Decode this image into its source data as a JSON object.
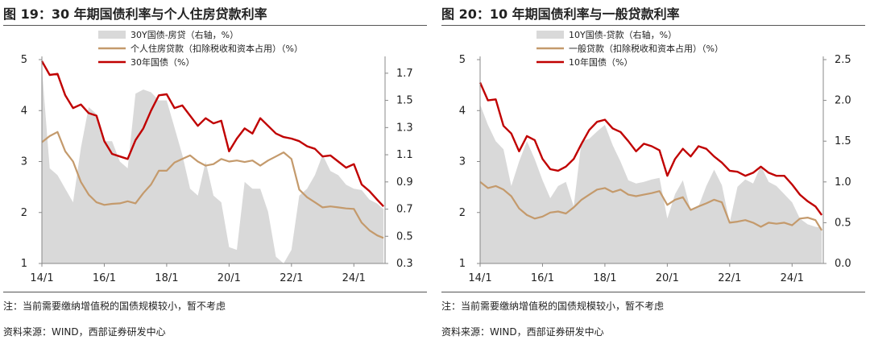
{
  "colors": {
    "area": "#d9d9d9",
    "loan": "#c49a6c",
    "bond": "#c00000",
    "axis": "#888888"
  },
  "chart_data": [
    {
      "type": "line",
      "title": "图 19：30 年期国债利率与个人住房贷款利率",
      "note": "注：当前需要缴纳增值税的国债规模较小，暂不考虑",
      "source": "资料来源：WIND，西部证券研发中心",
      "x_range": [
        2014.0,
        2025.0
      ],
      "x_ticks": [
        {
          "v": 2014.0,
          "label": "14/1"
        },
        {
          "v": 2016.0,
          "label": "16/1"
        },
        {
          "v": 2018.0,
          "label": "18/1"
        },
        {
          "v": 2020.0,
          "label": "20/1"
        },
        {
          "v": 2022.0,
          "label": "22/1"
        },
        {
          "v": 2024.0,
          "label": "24/1"
        }
      ],
      "ylim_left": [
        1,
        5
      ],
      "yticks_left": [
        "1",
        "2",
        "3",
        "4",
        "5"
      ],
      "ylim_right": [
        0.3,
        1.8
      ],
      "yticks_right": [
        "0.3",
        "0.5",
        "0.7",
        "0.9",
        "1.1",
        "1.3",
        "1.5",
        "1.7"
      ],
      "series": [
        {
          "name": "30Y国债-房贷（右轴，%）",
          "kind": "area",
          "axis": "right",
          "x": [
            2014.0,
            2014.25,
            2014.5,
            2014.75,
            2015.0,
            2015.25,
            2015.5,
            2015.75,
            2016.0,
            2016.25,
            2016.5,
            2016.75,
            2017.0,
            2017.25,
            2017.5,
            2017.75,
            2018.0,
            2018.25,
            2018.5,
            2018.75,
            2019.0,
            2019.25,
            2019.5,
            2019.75,
            2020.0,
            2020.25,
            2020.5,
            2020.75,
            2021.0,
            2021.25,
            2021.5,
            2021.75,
            2022.0,
            2022.25,
            2022.5,
            2022.75,
            2023.0,
            2023.25,
            2023.5,
            2023.75,
            2024.0,
            2024.25,
            2024.5,
            2024.75,
            2024.95
          ],
          "values": [
            1.74,
            1.0,
            0.95,
            0.85,
            0.75,
            1.15,
            1.45,
            1.4,
            1.2,
            1.2,
            1.05,
            1.0,
            1.55,
            1.58,
            1.56,
            1.5,
            1.5,
            1.3,
            1.1,
            0.85,
            0.8,
            1.05,
            0.8,
            0.75,
            0.42,
            0.4,
            0.9,
            0.85,
            0.85,
            0.68,
            0.35,
            0.3,
            0.4,
            0.8,
            0.85,
            0.95,
            1.1,
            0.98,
            0.95,
            0.88,
            0.85,
            0.84,
            0.77,
            0.74,
            0.7
          ]
        },
        {
          "name": "个人住房贷款（扣除税收和资本占用）（%）",
          "kind": "line",
          "axis": "left",
          "x": [
            2014.0,
            2014.25,
            2014.5,
            2014.75,
            2015.0,
            2015.25,
            2015.5,
            2015.75,
            2016.0,
            2016.25,
            2016.5,
            2016.75,
            2017.0,
            2017.25,
            2017.5,
            2017.75,
            2018.0,
            2018.25,
            2018.5,
            2018.75,
            2019.0,
            2019.25,
            2019.5,
            2019.75,
            2020.0,
            2020.25,
            2020.5,
            2020.75,
            2021.0,
            2021.25,
            2021.5,
            2021.75,
            2022.0,
            2022.25,
            2022.5,
            2022.75,
            2023.0,
            2023.25,
            2023.5,
            2023.75,
            2024.0,
            2024.25,
            2024.5,
            2024.75,
            2024.95
          ],
          "values": [
            3.38,
            3.5,
            3.58,
            3.2,
            3.0,
            2.6,
            2.35,
            2.2,
            2.15,
            2.17,
            2.18,
            2.22,
            2.18,
            2.38,
            2.55,
            2.82,
            2.82,
            2.98,
            3.05,
            3.12,
            3.0,
            2.92,
            2.95,
            3.05,
            3.0,
            3.02,
            2.99,
            3.02,
            2.92,
            3.02,
            3.1,
            3.18,
            3.05,
            2.45,
            2.3,
            2.2,
            2.1,
            2.12,
            2.1,
            2.08,
            2.07,
            1.8,
            1.65,
            1.55,
            1.5
          ]
        },
        {
          "name": "30年国债（%）",
          "kind": "line",
          "axis": "left",
          "x": [
            2014.0,
            2014.25,
            2014.5,
            2014.75,
            2015.0,
            2015.25,
            2015.5,
            2015.75,
            2016.0,
            2016.25,
            2016.5,
            2016.75,
            2017.0,
            2017.25,
            2017.5,
            2017.75,
            2018.0,
            2018.25,
            2018.5,
            2018.75,
            2019.0,
            2019.25,
            2019.5,
            2019.75,
            2020.0,
            2020.25,
            2020.5,
            2020.75,
            2021.0,
            2021.25,
            2021.5,
            2021.75,
            2022.0,
            2022.25,
            2022.5,
            2022.75,
            2023.0,
            2023.25,
            2023.5,
            2023.75,
            2024.0,
            2024.25,
            2024.5,
            2024.75,
            2024.95
          ],
          "values": [
            4.97,
            4.7,
            4.72,
            4.3,
            4.05,
            4.12,
            3.95,
            3.9,
            3.4,
            3.15,
            3.1,
            3.05,
            3.42,
            3.65,
            4.0,
            4.3,
            4.32,
            4.05,
            4.1,
            3.9,
            3.7,
            3.85,
            3.75,
            3.8,
            3.2,
            3.45,
            3.65,
            3.55,
            3.85,
            3.7,
            3.55,
            3.48,
            3.45,
            3.4,
            3.3,
            3.25,
            3.1,
            3.12,
            3.0,
            2.88,
            2.95,
            2.55,
            2.42,
            2.25,
            2.12
          ]
        }
      ]
    },
    {
      "type": "line",
      "title": "图 20：10 年期国债利率与一般贷款利率",
      "note": "注：当前需要缴纳增值税的国债规模较小，暂不考虑",
      "source": "资料来源：WIND，西部证券研发中心",
      "x_range": [
        2014.0,
        2025.0
      ],
      "x_ticks": [
        {
          "v": 2014.0,
          "label": "14/1"
        },
        {
          "v": 2016.0,
          "label": "16/1"
        },
        {
          "v": 2018.0,
          "label": "18/1"
        },
        {
          "v": 2020.0,
          "label": "20/1"
        },
        {
          "v": 2022.0,
          "label": "22/1"
        },
        {
          "v": 2024.0,
          "label": "24/1"
        }
      ],
      "ylim_left": [
        1,
        5
      ],
      "yticks_left": [
        "1",
        "2",
        "3",
        "4",
        "5"
      ],
      "ylim_right": [
        0.0,
        2.5
      ],
      "yticks_right": [
        "0.0",
        "0.5",
        "1.0",
        "1.5",
        "2.0",
        "2.5"
      ],
      "series": [
        {
          "name": "10Y国债-贷款（右轴，%）",
          "kind": "area",
          "axis": "right",
          "x": [
            2014.0,
            2014.25,
            2014.5,
            2014.75,
            2015.0,
            2015.25,
            2015.5,
            2015.75,
            2016.0,
            2016.25,
            2016.5,
            2016.75,
            2017.0,
            2017.25,
            2017.5,
            2017.75,
            2018.0,
            2018.25,
            2018.5,
            2018.75,
            2019.0,
            2019.25,
            2019.5,
            2019.75,
            2020.0,
            2020.25,
            2020.5,
            2020.75,
            2021.0,
            2021.25,
            2021.5,
            2021.75,
            2022.0,
            2022.25,
            2022.5,
            2022.75,
            2023.0,
            2023.25,
            2023.5,
            2023.75,
            2024.0,
            2024.25,
            2024.5,
            2024.75,
            2024.95
          ],
          "values": [
            1.95,
            1.7,
            1.5,
            1.4,
            0.95,
            1.25,
            1.5,
            1.28,
            1.02,
            0.8,
            0.95,
            1.0,
            0.7,
            1.5,
            1.53,
            1.62,
            1.7,
            1.45,
            1.25,
            1.02,
            0.98,
            1.0,
            1.03,
            1.05,
            0.55,
            0.85,
            1.02,
            0.65,
            0.7,
            0.95,
            1.15,
            0.96,
            0.5,
            0.94,
            1.03,
            0.98,
            1.2,
            1.0,
            0.95,
            0.85,
            0.75,
            0.55,
            0.48,
            0.45,
            0.44
          ]
        },
        {
          "name": "一般贷款（扣除税收和资本占用）（%）",
          "kind": "line",
          "axis": "left",
          "x": [
            2014.0,
            2014.25,
            2014.5,
            2014.75,
            2015.0,
            2015.25,
            2015.5,
            2015.75,
            2016.0,
            2016.25,
            2016.5,
            2016.75,
            2017.0,
            2017.25,
            2017.5,
            2017.75,
            2018.0,
            2018.25,
            2018.5,
            2018.75,
            2019.0,
            2019.25,
            2019.5,
            2019.75,
            2020.0,
            2020.25,
            2020.5,
            2020.75,
            2021.0,
            2021.25,
            2021.5,
            2021.75,
            2022.0,
            2022.25,
            2022.5,
            2022.75,
            2023.0,
            2023.25,
            2023.5,
            2023.75,
            2024.0,
            2024.25,
            2024.5,
            2024.75,
            2024.95
          ],
          "values": [
            2.6,
            2.48,
            2.52,
            2.45,
            2.32,
            2.08,
            1.95,
            1.88,
            1.92,
            2.0,
            2.02,
            1.98,
            2.1,
            2.25,
            2.35,
            2.45,
            2.48,
            2.4,
            2.45,
            2.35,
            2.32,
            2.35,
            2.38,
            2.42,
            2.15,
            2.25,
            2.3,
            2.05,
            2.12,
            2.18,
            2.25,
            2.2,
            1.8,
            1.82,
            1.85,
            1.8,
            1.72,
            1.8,
            1.78,
            1.8,
            1.75,
            1.88,
            1.9,
            1.85,
            1.65
          ]
        },
        {
          "name": "10年国债（%）",
          "kind": "line",
          "axis": "left",
          "x": [
            2014.0,
            2014.25,
            2014.5,
            2014.75,
            2015.0,
            2015.25,
            2015.5,
            2015.75,
            2016.0,
            2016.25,
            2016.5,
            2016.75,
            2017.0,
            2017.25,
            2017.5,
            2017.75,
            2018.0,
            2018.25,
            2018.5,
            2018.75,
            2019.0,
            2019.25,
            2019.5,
            2019.75,
            2020.0,
            2020.25,
            2020.5,
            2020.75,
            2021.0,
            2021.25,
            2021.5,
            2021.75,
            2022.0,
            2022.25,
            2022.5,
            2022.75,
            2023.0,
            2023.25,
            2023.5,
            2023.75,
            2024.0,
            2024.25,
            2024.5,
            2024.75,
            2024.95
          ],
          "values": [
            4.55,
            4.2,
            4.22,
            3.7,
            3.55,
            3.2,
            3.5,
            3.42,
            3.05,
            2.85,
            2.82,
            2.9,
            3.05,
            3.35,
            3.62,
            3.78,
            3.82,
            3.65,
            3.58,
            3.4,
            3.2,
            3.35,
            3.3,
            3.22,
            2.72,
            3.05,
            3.25,
            3.1,
            3.3,
            3.25,
            3.1,
            2.98,
            2.82,
            2.8,
            2.72,
            2.78,
            2.9,
            2.78,
            2.72,
            2.72,
            2.55,
            2.35,
            2.22,
            2.12,
            1.95
          ]
        }
      ]
    }
  ]
}
